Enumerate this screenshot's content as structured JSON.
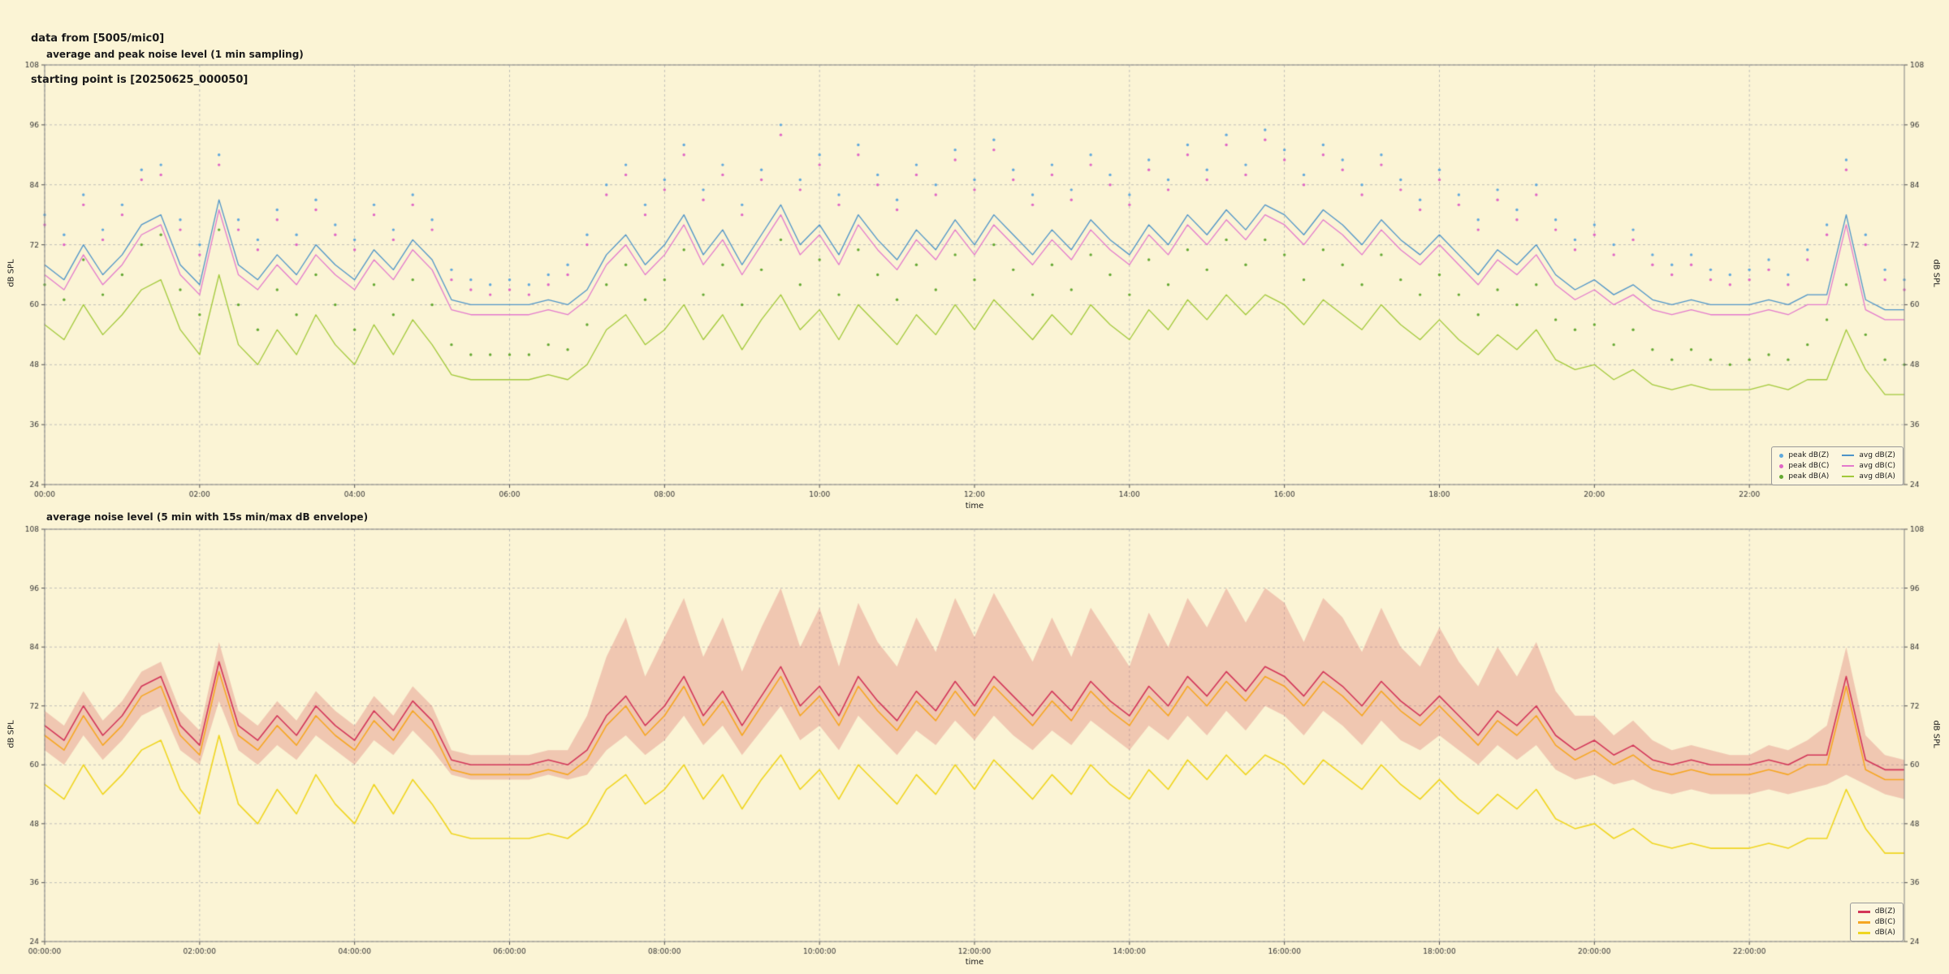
{
  "header": {
    "line1": "data from [5005/mic0]",
    "line2": "starting point is [20250625_000050]"
  },
  "colors": {
    "background": "#FBF4D5",
    "grid": "#B3B3B3",
    "frame": "#808080",
    "tick_text": "#333333"
  },
  "chart_data": [
    {
      "type": "line",
      "title": "average and peak noise level (1 min sampling)",
      "xlabel": "time",
      "ylabel": "dB SPL",
      "ylim": [
        24,
        108
      ],
      "yticks": [
        24,
        36,
        48,
        60,
        72,
        84,
        96,
        108
      ],
      "xlim_hours": [
        0,
        24
      ],
      "xtick_hours": [
        0,
        2,
        4,
        6,
        8,
        10,
        12,
        14,
        16,
        18,
        20,
        22
      ],
      "xtick_labels": [
        "00:00",
        "02:00",
        "04:00",
        "06:00",
        "08:00",
        "10:00",
        "12:00",
        "14:00",
        "16:00",
        "18:00",
        "20:00",
        "22:00"
      ],
      "grid": true,
      "legend_position": "lower right",
      "series": [
        {
          "name": "peak dB(Z)",
          "type": "scatter",
          "color": "#5FA8DC",
          "data": "peak_z"
        },
        {
          "name": "peak dB(C)",
          "type": "scatter",
          "color": "#E065C5",
          "data": "peak_c"
        },
        {
          "name": "peak dB(A)",
          "type": "scatter",
          "color": "#64A832",
          "data": "peak_a"
        },
        {
          "name": "avg dB(Z)",
          "type": "line",
          "color": "#4E94C8",
          "width": 1.3,
          "data": "avg_z"
        },
        {
          "name": "avg dB(C)",
          "type": "line",
          "color": "#E37ACC",
          "width": 1.3,
          "data": "avg_c"
        },
        {
          "name": "avg dB(A)",
          "type": "line",
          "color": "#A2C93A",
          "width": 1.3,
          "data": "avg_a"
        }
      ]
    },
    {
      "type": "line",
      "title": "average noise level (5 min with 15s min/max dB envelope)",
      "xlabel": "time",
      "ylabel": "dB SPL",
      "ylim": [
        24,
        108
      ],
      "yticks": [
        24,
        36,
        48,
        60,
        72,
        84,
        96,
        108
      ],
      "xlim_hours": [
        0,
        24
      ],
      "xtick_hours": [
        0,
        2,
        4,
        6,
        8,
        10,
        12,
        14,
        16,
        18,
        20,
        22
      ],
      "xtick_labels": [
        "00:00:00",
        "02:00:00",
        "04:00:00",
        "06:00:00",
        "08:00:00",
        "10:00:00",
        "12:00:00",
        "14:00:00",
        "16:00:00",
        "18:00:00",
        "20:00:00",
        "22:00:00"
      ],
      "grid": true,
      "legend_position": "lower right",
      "envelope": {
        "name": "15s min/max dB envelope",
        "min": "env_min",
        "max": "env_max",
        "color": "rgba(216,96,96,0.30)"
      },
      "series": [
        {
          "name": "dB(Z)",
          "type": "line",
          "color": "#D23558",
          "width": 1.6,
          "data": "avg_z"
        },
        {
          "name": "dB(C)",
          "type": "line",
          "color": "#F5A623",
          "width": 1.6,
          "data": "avg_c"
        },
        {
          "name": "dB(A)",
          "type": "line",
          "color": "#EFD520",
          "width": 1.6,
          "data": "avg_a"
        }
      ]
    }
  ],
  "series_data": {
    "x": {
      "start_hours": 0,
      "step_hours": 0.25,
      "count": 97
    },
    "avg_z": [
      68,
      65,
      72,
      66,
      70,
      76,
      78,
      68,
      64,
      81,
      68,
      65,
      70,
      66,
      72,
      68,
      65,
      71,
      67,
      73,
      69,
      61,
      60,
      60,
      60,
      60,
      61,
      60,
      63,
      70,
      74,
      68,
      72,
      78,
      70,
      75,
      68,
      74,
      80,
      72,
      76,
      70,
      78,
      73,
      69,
      75,
      71,
      77,
      72,
      78,
      74,
      70,
      75,
      71,
      77,
      73,
      70,
      76,
      72,
      78,
      74,
      79,
      75,
      80,
      78,
      74,
      79,
      76,
      72,
      77,
      73,
      70,
      74,
      70,
      66,
      71,
      68,
      72,
      66,
      63,
      65,
      62,
      64,
      61,
      60,
      61,
      60,
      60,
      60,
      61,
      60,
      62,
      62,
      78,
      61,
      59,
      59
    ],
    "avg_c": [
      66,
      63,
      70,
      64,
      68,
      74,
      76,
      66,
      62,
      79,
      66,
      63,
      68,
      64,
      70,
      66,
      63,
      69,
      65,
      71,
      67,
      59,
      58,
      58,
      58,
      58,
      59,
      58,
      61,
      68,
      72,
      66,
      70,
      76,
      68,
      73,
      66,
      72,
      78,
      70,
      74,
      68,
      76,
      71,
      67,
      73,
      69,
      75,
      70,
      76,
      72,
      68,
      73,
      69,
      75,
      71,
      68,
      74,
      70,
      76,
      72,
      77,
      73,
      78,
      76,
      72,
      77,
      74,
      70,
      75,
      71,
      68,
      72,
      68,
      64,
      69,
      66,
      70,
      64,
      61,
      63,
      60,
      62,
      59,
      58,
      59,
      58,
      58,
      58,
      59,
      58,
      60,
      60,
      76,
      59,
      57,
      57
    ],
    "avg_a": [
      56,
      53,
      60,
      54,
      58,
      63,
      65,
      55,
      50,
      66,
      52,
      48,
      55,
      50,
      58,
      52,
      48,
      56,
      50,
      57,
      52,
      46,
      45,
      45,
      45,
      45,
      46,
      45,
      48,
      55,
      58,
      52,
      55,
      60,
      53,
      58,
      51,
      57,
      62,
      55,
      59,
      53,
      60,
      56,
      52,
      58,
      54,
      60,
      55,
      61,
      57,
      53,
      58,
      54,
      60,
      56,
      53,
      59,
      55,
      61,
      57,
      62,
      58,
      62,
      60,
      56,
      61,
      58,
      55,
      60,
      56,
      53,
      57,
      53,
      50,
      54,
      51,
      55,
      49,
      47,
      48,
      45,
      47,
      44,
      43,
      44,
      43,
      43,
      43,
      44,
      43,
      45,
      45,
      55,
      47,
      42,
      42
    ],
    "peak_z": [
      78,
      74,
      82,
      75,
      80,
      87,
      88,
      77,
      72,
      90,
      77,
      73,
      79,
      74,
      81,
      76,
      73,
      80,
      75,
      82,
      77,
      67,
      65,
      64,
      65,
      64,
      66,
      68,
      74,
      84,
      88,
      80,
      85,
      92,
      83,
      88,
      80,
      87,
      96,
      85,
      90,
      82,
      92,
      86,
      81,
      88,
      84,
      91,
      85,
      93,
      87,
      82,
      88,
      83,
      90,
      86,
      82,
      89,
      85,
      92,
      87,
      94,
      88,
      95,
      91,
      86,
      92,
      89,
      84,
      90,
      85,
      81,
      87,
      82,
      77,
      83,
      79,
      84,
      77,
      73,
      76,
      72,
      75,
      70,
      68,
      70,
      67,
      66,
      67,
      69,
      66,
      71,
      76,
      89,
      74,
      67,
      65
    ],
    "peak_c": [
      76,
      72,
      80,
      73,
      78,
      85,
      86,
      75,
      70,
      88,
      75,
      71,
      77,
      72,
      79,
      74,
      71,
      78,
      73,
      80,
      75,
      65,
      63,
      62,
      63,
      62,
      64,
      66,
      72,
      82,
      86,
      78,
      83,
      90,
      81,
      86,
      78,
      85,
      94,
      83,
      88,
      80,
      90,
      84,
      79,
      86,
      82,
      89,
      83,
      91,
      85,
      80,
      86,
      81,
      88,
      84,
      80,
      87,
      83,
      90,
      85,
      92,
      86,
      93,
      89,
      84,
      90,
      87,
      82,
      88,
      83,
      79,
      85,
      80,
      75,
      81,
      77,
      82,
      75,
      71,
      74,
      70,
      73,
      68,
      66,
      68,
      65,
      64,
      65,
      67,
      64,
      69,
      74,
      87,
      72,
      65,
      63
    ],
    "peak_a": [
      64,
      61,
      69,
      62,
      66,
      72,
      74,
      63,
      58,
      75,
      60,
      55,
      63,
      58,
      66,
      60,
      55,
      64,
      58,
      65,
      60,
      52,
      50,
      50,
      50,
      50,
      52,
      51,
      56,
      64,
      68,
      61,
      65,
      71,
      62,
      68,
      60,
      67,
      73,
      64,
      69,
      62,
      71,
      66,
      61,
      68,
      63,
      70,
      65,
      72,
      67,
      62,
      68,
      63,
      70,
      66,
      62,
      69,
      64,
      71,
      67,
      73,
      68,
      73,
      70,
      65,
      71,
      68,
      64,
      70,
      65,
      62,
      66,
      62,
      58,
      63,
      60,
      64,
      57,
      55,
      56,
      52,
      55,
      51,
      49,
      51,
      49,
      48,
      49,
      50,
      49,
      52,
      57,
      64,
      54,
      49,
      48
    ],
    "env_max": [
      71,
      68,
      75,
      69,
      73,
      79,
      81,
      71,
      67,
      85,
      71,
      68,
      73,
      69,
      75,
      71,
      68,
      74,
      70,
      76,
      72,
      63,
      62,
      62,
      62,
      62,
      63,
      63,
      70,
      82,
      90,
      78,
      86,
      94,
      82,
      90,
      79,
      88,
      96,
      84,
      92,
      80,
      93,
      85,
      80,
      90,
      83,
      94,
      86,
      95,
      88,
      81,
      90,
      82,
      92,
      86,
      80,
      91,
      84,
      94,
      88,
      96,
      89,
      96,
      93,
      85,
      94,
      90,
      83,
      92,
      84,
      80,
      88,
      81,
      76,
      84,
      78,
      85,
      75,
      70,
      70,
      66,
      69,
      65,
      63,
      64,
      63,
      62,
      62,
      64,
      63,
      65,
      68,
      84,
      66,
      62,
      61
    ],
    "env_min": [
      63,
      60,
      66,
      61,
      65,
      70,
      72,
      63,
      60,
      73,
      63,
      60,
      64,
      61,
      66,
      63,
      60,
      65,
      62,
      67,
      63,
      58,
      57,
      57,
      57,
      57,
      58,
      57,
      58,
      63,
      66,
      62,
      65,
      70,
      64,
      68,
      62,
      67,
      72,
      65,
      68,
      63,
      70,
      66,
      62,
      67,
      64,
      69,
      65,
      70,
      66,
      63,
      67,
      64,
      69,
      66,
      63,
      68,
      65,
      70,
      66,
      71,
      67,
      72,
      70,
      66,
      71,
      68,
      64,
      69,
      65,
      63,
      66,
      63,
      60,
      64,
      61,
      64,
      59,
      57,
      58,
      56,
      57,
      55,
      54,
      55,
      54,
      54,
      54,
      55,
      54,
      55,
      56,
      58,
      56,
      54,
      53
    ]
  }
}
